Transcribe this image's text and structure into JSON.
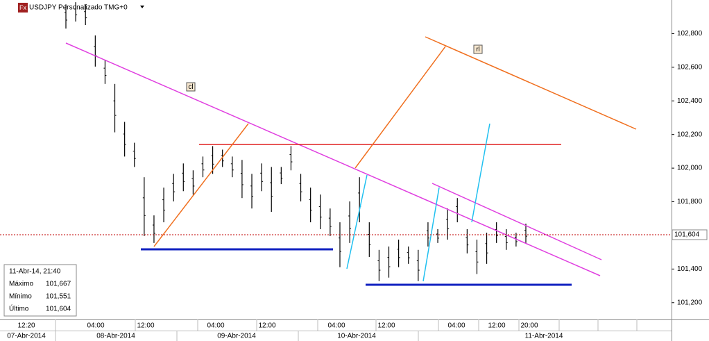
{
  "chart_data": {
    "type": "hl-bars",
    "title": "USDJPY Personalizado TMG+0",
    "icon": "Fx",
    "color": "#000000",
    "highs": [
      102974,
      102987,
      102974,
      102789,
      102645,
      102501,
      102275,
      102151,
      101946,
      101719,
      101884,
      101966,
      102028,
      101987,
      102069,
      102131,
      102110,
      102069,
      102049,
      101966,
      102028,
      102007,
      102007,
      102131,
      101966,
      101884,
      101843,
      101760,
      101678,
      101802,
      101946,
      101678,
      101514,
      101534,
      101575,
      101534,
      101514,
      101678,
      101637,
      101760,
      101822,
      101637,
      101575,
      101616,
      101678,
      101637,
      101616,
      101670
    ],
    "lows": [
      102830,
      102872,
      102851,
      102604,
      102501,
      102213,
      102069,
      102007,
      101596,
      101555,
      101678,
      101802,
      101863,
      101843,
      101946,
      101966,
      102007,
      101946,
      101822,
      101760,
      101863,
      101740,
      101905,
      101987,
      101802,
      101678,
      101637,
      101596,
      101411,
      101555,
      101678,
      101472,
      101328,
      101349,
      101411,
      101431,
      101328,
      101534,
      101555,
      101575,
      101678,
      101493,
      101370,
      101431,
      101555,
      101514,
      101534,
      101555
    ],
    "ylim": [
      101100,
      103000
    ],
    "yticks": [
      {
        "value": 101200,
        "label": "101,200"
      },
      {
        "value": 101400,
        "label": "101,400"
      },
      {
        "value": 101800,
        "label": "101,800"
      },
      {
        "value": 102000,
        "label": "102,000"
      },
      {
        "value": 102200,
        "label": "102,200"
      },
      {
        "value": 102400,
        "label": "102,400"
      },
      {
        "value": 102600,
        "label": "102,600"
      },
      {
        "value": 102800,
        "label": "102,800"
      }
    ],
    "last_price": {
      "value": 101604,
      "label": "101,604"
    },
    "time_labels": [
      "12:20",
      "04:00",
      "12:00",
      "04:00",
      "12:00",
      "04:00",
      "12:00",
      "04:00",
      "12:00",
      "20:00"
    ],
    "date_labels": [
      "07-Abr-2014",
      "08-Abr-2014",
      "09-Abr-2014",
      "10-Abr-2014",
      "11-Abr-2014"
    ],
    "annotations": [
      "cl",
      "rl"
    ],
    "info": {
      "datetime": "11-Abr-14, 21:40",
      "rows": [
        [
          "Máximo",
          "101,667"
        ],
        [
          "Mínimo",
          "101,551"
        ],
        [
          "Último",
          "101,604"
        ]
      ]
    }
  }
}
